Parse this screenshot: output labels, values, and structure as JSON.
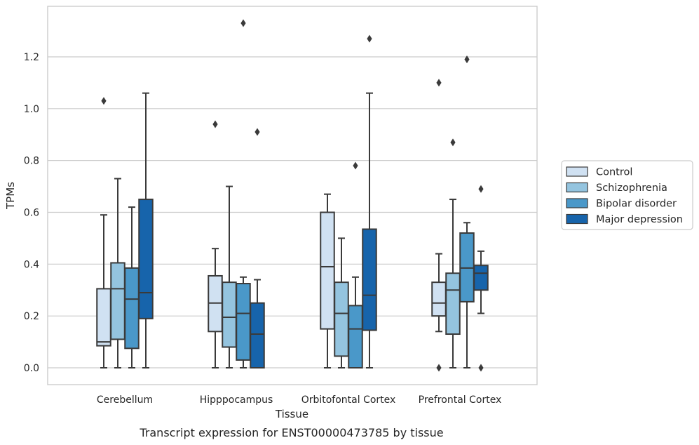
{
  "caption": "Transcript expression for ENST00000473785 by tissue",
  "chart_data": {
    "type": "box",
    "xlabel": "Tissue",
    "ylabel": "TPMs",
    "ylim": [
      -0.065,
      1.395
    ],
    "yticks": [
      0.0,
      0.2,
      0.4,
      0.6,
      0.8,
      1.0,
      1.2
    ],
    "ytick_labels": [
      "0.0",
      "0.2",
      "0.4",
      "0.6",
      "0.8",
      "1.0",
      "1.2"
    ],
    "grid": "horizontal",
    "legend_position": "right",
    "categories": [
      "Cerebellum",
      "Hipppocampus",
      "Orbitofontal Cortex",
      "Prefrontal Cortex"
    ],
    "series": [
      {
        "name": "Control",
        "color": "#d0e1f2",
        "boxes": [
          {
            "whisker_low": 0.0,
            "q1": 0.085,
            "median": 0.1,
            "q3": 0.305,
            "whisker_high": 0.59,
            "outliers": [
              1.03
            ]
          },
          {
            "whisker_low": 0.0,
            "q1": 0.14,
            "median": 0.25,
            "q3": 0.355,
            "whisker_high": 0.46,
            "outliers": [
              0.94
            ]
          },
          {
            "whisker_low": 0.0,
            "q1": 0.15,
            "median": 0.39,
            "q3": 0.6,
            "whisker_high": 0.67,
            "outliers": []
          },
          {
            "whisker_low": 0.14,
            "q1": 0.2,
            "median": 0.25,
            "q3": 0.33,
            "whisker_high": 0.44,
            "outliers": [
              1.1,
              0.0
            ]
          }
        ]
      },
      {
        "name": "Schizophrenia",
        "color": "#94c4df",
        "boxes": [
          {
            "whisker_low": 0.0,
            "q1": 0.11,
            "median": 0.305,
            "q3": 0.405,
            "whisker_high": 0.73,
            "outliers": []
          },
          {
            "whisker_low": 0.0,
            "q1": 0.08,
            "median": 0.195,
            "q3": 0.33,
            "whisker_high": 0.7,
            "outliers": []
          },
          {
            "whisker_low": 0.0,
            "q1": 0.045,
            "median": 0.21,
            "q3": 0.33,
            "whisker_high": 0.5,
            "outliers": []
          },
          {
            "whisker_low": 0.0,
            "q1": 0.13,
            "median": 0.3,
            "q3": 0.365,
            "whisker_high": 0.65,
            "outliers": [
              0.87
            ]
          }
        ]
      },
      {
        "name": "Bipolar disorder",
        "color": "#4a98c9",
        "boxes": [
          {
            "whisker_low": 0.0,
            "q1": 0.075,
            "median": 0.265,
            "q3": 0.385,
            "whisker_high": 0.62,
            "outliers": []
          },
          {
            "whisker_low": 0.0,
            "q1": 0.03,
            "median": 0.21,
            "q3": 0.325,
            "whisker_high": 0.35,
            "outliers": [
              1.33
            ]
          },
          {
            "whisker_low": 0.0,
            "q1": 0.0,
            "median": 0.15,
            "q3": 0.24,
            "whisker_high": 0.35,
            "outliers": [
              0.78
            ]
          },
          {
            "whisker_low": 0.0,
            "q1": 0.255,
            "median": 0.385,
            "q3": 0.52,
            "whisker_high": 0.56,
            "outliers": [
              1.19
            ]
          }
        ]
      },
      {
        "name": "Major depression",
        "color": "#1764ab",
        "boxes": [
          {
            "whisker_low": 0.0,
            "q1": 0.19,
            "median": 0.29,
            "q3": 0.65,
            "whisker_high": 1.06,
            "outliers": []
          },
          {
            "whisker_low": 0.0,
            "q1": 0.0,
            "median": 0.13,
            "q3": 0.25,
            "whisker_high": 0.34,
            "outliers": [
              0.91
            ]
          },
          {
            "whisker_low": 0.0,
            "q1": 0.145,
            "median": 0.28,
            "q3": 0.535,
            "whisker_high": 1.06,
            "outliers": [
              1.27
            ]
          },
          {
            "whisker_low": 0.21,
            "q1": 0.3,
            "median": 0.365,
            "q3": 0.395,
            "whisker_high": 0.45,
            "outliers": [
              0.69,
              0.0
            ]
          }
        ]
      }
    ]
  }
}
